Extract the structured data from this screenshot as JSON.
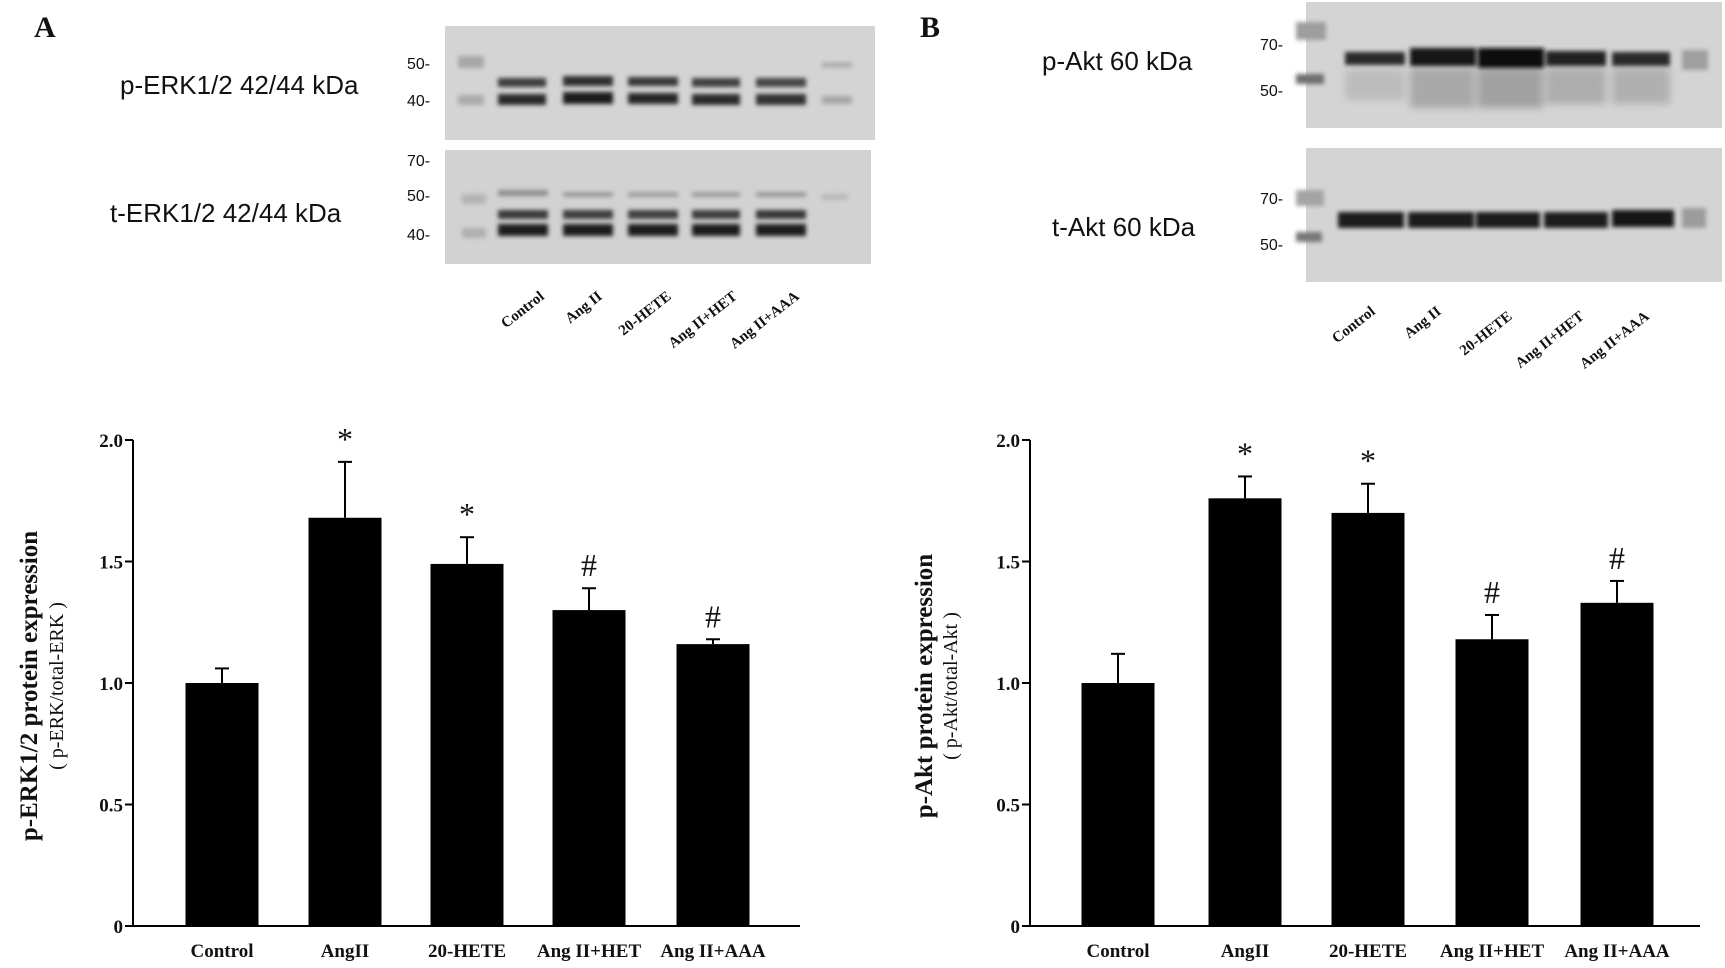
{
  "figure": {
    "panels": [
      {
        "letter": "A",
        "blots": [
          {
            "label": "p-ERK1/2 42/44 kDa",
            "markers": [
              "50-",
              "40-"
            ]
          },
          {
            "label": "t-ERK1/2 42/44 kDa",
            "markers": [
              "70-",
              "50-",
              "40-"
            ]
          }
        ],
        "lanes": [
          "Control",
          "Ang II",
          "20-HETE",
          "Ang II+HET",
          "Ang II+AAA"
        ]
      },
      {
        "letter": "B",
        "blots": [
          {
            "label": "p-Akt 60 kDa",
            "markers": [
              "70-",
              "50-"
            ]
          },
          {
            "label": "t-Akt 60 kDa",
            "markers": [
              "70-",
              "50-"
            ]
          }
        ],
        "lanes": [
          "Control",
          "Ang II",
          "20-HETE",
          "Ang II+HET",
          "Ang II+AAA"
        ]
      }
    ]
  },
  "chart_data": [
    {
      "type": "bar",
      "title": "",
      "ylabel": "p-ERK1/2  protein expression",
      "ylabel_sub": "( p-ERK/total-ERK )",
      "xlabel": "",
      "categories": [
        "Control",
        "AngII",
        "20-HETE",
        "Ang II+HET",
        "Ang II+AAA"
      ],
      "values": [
        1.0,
        1.68,
        1.49,
        1.3,
        1.16
      ],
      "errors": [
        0.06,
        0.23,
        0.11,
        0.09,
        0.02
      ],
      "annotations": [
        "",
        "*",
        "*",
        "#",
        "#"
      ],
      "ylim": [
        0,
        2.0
      ],
      "yticks": [
        "0",
        "0.5",
        "1.0",
        "1.5",
        "2.0"
      ],
      "bar_color": "#000000",
      "grid": false
    },
    {
      "type": "bar",
      "title": "",
      "ylabel": "p-Akt  protein expression",
      "ylabel_sub": "( p-Akt/total-Akt )",
      "xlabel": "",
      "categories": [
        "Control",
        "AngII",
        "20-HETE",
        "Ang II+HET",
        "Ang II+AAA"
      ],
      "values": [
        1.0,
        1.76,
        1.7,
        1.18,
        1.33
      ],
      "errors": [
        0.12,
        0.09,
        0.12,
        0.1,
        0.09
      ],
      "annotations": [
        "",
        "*",
        "*",
        "#",
        "#"
      ],
      "ylim": [
        0,
        2.0
      ],
      "yticks": [
        "0",
        "0.5",
        "1.0",
        "1.5",
        "2.0"
      ],
      "bar_color": "#000000",
      "grid": false
    }
  ]
}
